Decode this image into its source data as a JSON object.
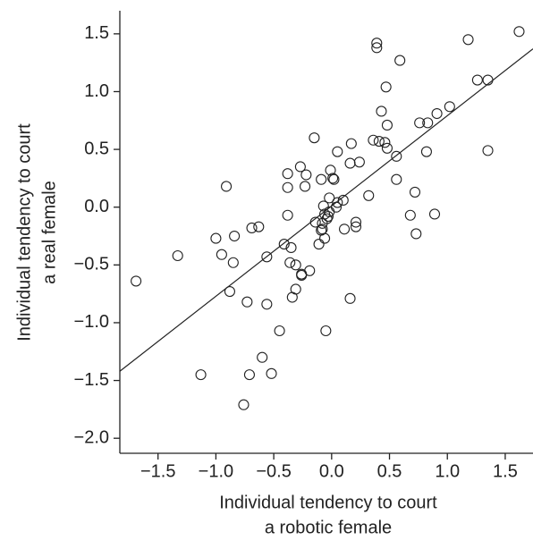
{
  "chart_data": {
    "type": "scatter",
    "xlabel": [
      "Individual tendency to court",
      "a robotic female"
    ],
    "ylabel": [
      "Individual tendency to court",
      "a real female"
    ],
    "xlim": [
      -1.83,
      1.74
    ],
    "ylim": [
      -2.13,
      1.7
    ],
    "xticks": [
      {
        "value": -1.5,
        "label": "−1.5"
      },
      {
        "value": -1.0,
        "label": "−1.0"
      },
      {
        "value": -0.5,
        "label": "−0.5"
      },
      {
        "value": 0,
        "label": "0.0"
      },
      0.5,
      {
        "value": 1.0,
        "label": "1.0"
      },
      1.5
    ],
    "yticks": [
      {
        "value": -2.0,
        "label": "−2.0"
      },
      {
        "value": -1.5,
        "label": "−1.5"
      },
      {
        "value": -1.0,
        "label": "−1.0"
      },
      {
        "value": -0.5,
        "label": "−0.5"
      },
      {
        "value": 0,
        "label": "0.0"
      },
      0.5,
      {
        "value": 1.0,
        "label": "1.0"
      },
      1.5
    ],
    "color": "#222222",
    "x": [
      -1.69,
      -1.33,
      -1.0,
      -0.95,
      -0.91,
      -0.84,
      -0.85,
      -0.88,
      -1.13,
      -0.76,
      -0.73,
      -0.71,
      -0.69,
      -0.63,
      -0.6,
      -0.56,
      -0.56,
      -0.52,
      -0.45,
      -0.41,
      -0.38,
      -0.38,
      -0.38,
      -0.35,
      -0.36,
      -0.34,
      -0.31,
      -0.31,
      -0.27,
      -0.26,
      -0.26,
      -0.23,
      -0.22,
      -0.19,
      -0.15,
      -0.14,
      -0.09,
      -0.11,
      -0.09,
      -0.08,
      -0.08,
      -0.07,
      -0.06,
      -0.06,
      -0.05,
      -0.04,
      -0.03,
      -0.02,
      -0.02,
      -0.01,
      0.01,
      0.02,
      0.04,
      0.05,
      0.05,
      0.1,
      0.11,
      0.16,
      0.17,
      0.16,
      0.21,
      0.21,
      0.24,
      0.32,
      0.36,
      0.39,
      0.39,
      0.41,
      0.43,
      0.46,
      0.47,
      0.48,
      0.48,
      0.56,
      0.56,
      0.59,
      0.68,
      0.72,
      0.73,
      0.76,
      0.82,
      0.83,
      0.89,
      0.91,
      1.02,
      1.18,
      1.26,
      1.35,
      1.35,
      1.62
    ],
    "y": [
      -0.64,
      -0.42,
      -0.27,
      -0.41,
      0.18,
      -0.25,
      -0.48,
      -0.73,
      -1.45,
      -1.71,
      -0.82,
      -1.45,
      -0.18,
      -0.17,
      -1.3,
      -0.43,
      -0.84,
      -1.44,
      -1.07,
      -0.32,
      -0.07,
      0.17,
      0.29,
      -0.35,
      -0.48,
      -0.78,
      -0.71,
      -0.5,
      0.35,
      -0.58,
      -0.59,
      0.18,
      0.28,
      -0.55,
      0.6,
      -0.13,
      0.24,
      -0.32,
      -0.2,
      -0.19,
      -0.14,
      0.01,
      -0.06,
      -0.27,
      -1.07,
      -0.1,
      -0.08,
      -0.04,
      0.08,
      0.32,
      0.25,
      0.24,
      0.0,
      0.04,
      0.48,
      0.06,
      -0.19,
      0.38,
      0.55,
      -0.79,
      -0.13,
      -0.17,
      0.39,
      0.1,
      0.58,
      1.42,
      1.38,
      0.57,
      0.83,
      0.56,
      1.04,
      0.71,
      0.51,
      0.24,
      0.44,
      1.27,
      -0.07,
      0.13,
      -0.23,
      0.73,
      0.48,
      0.73,
      -0.06,
      0.81,
      0.87,
      1.45,
      1.1,
      1.1,
      0.49,
      1.52
    ],
    "fit": {
      "x": [
        -1.83,
        1.74
      ],
      "y": [
        -1.42,
        1.37
      ]
    }
  }
}
